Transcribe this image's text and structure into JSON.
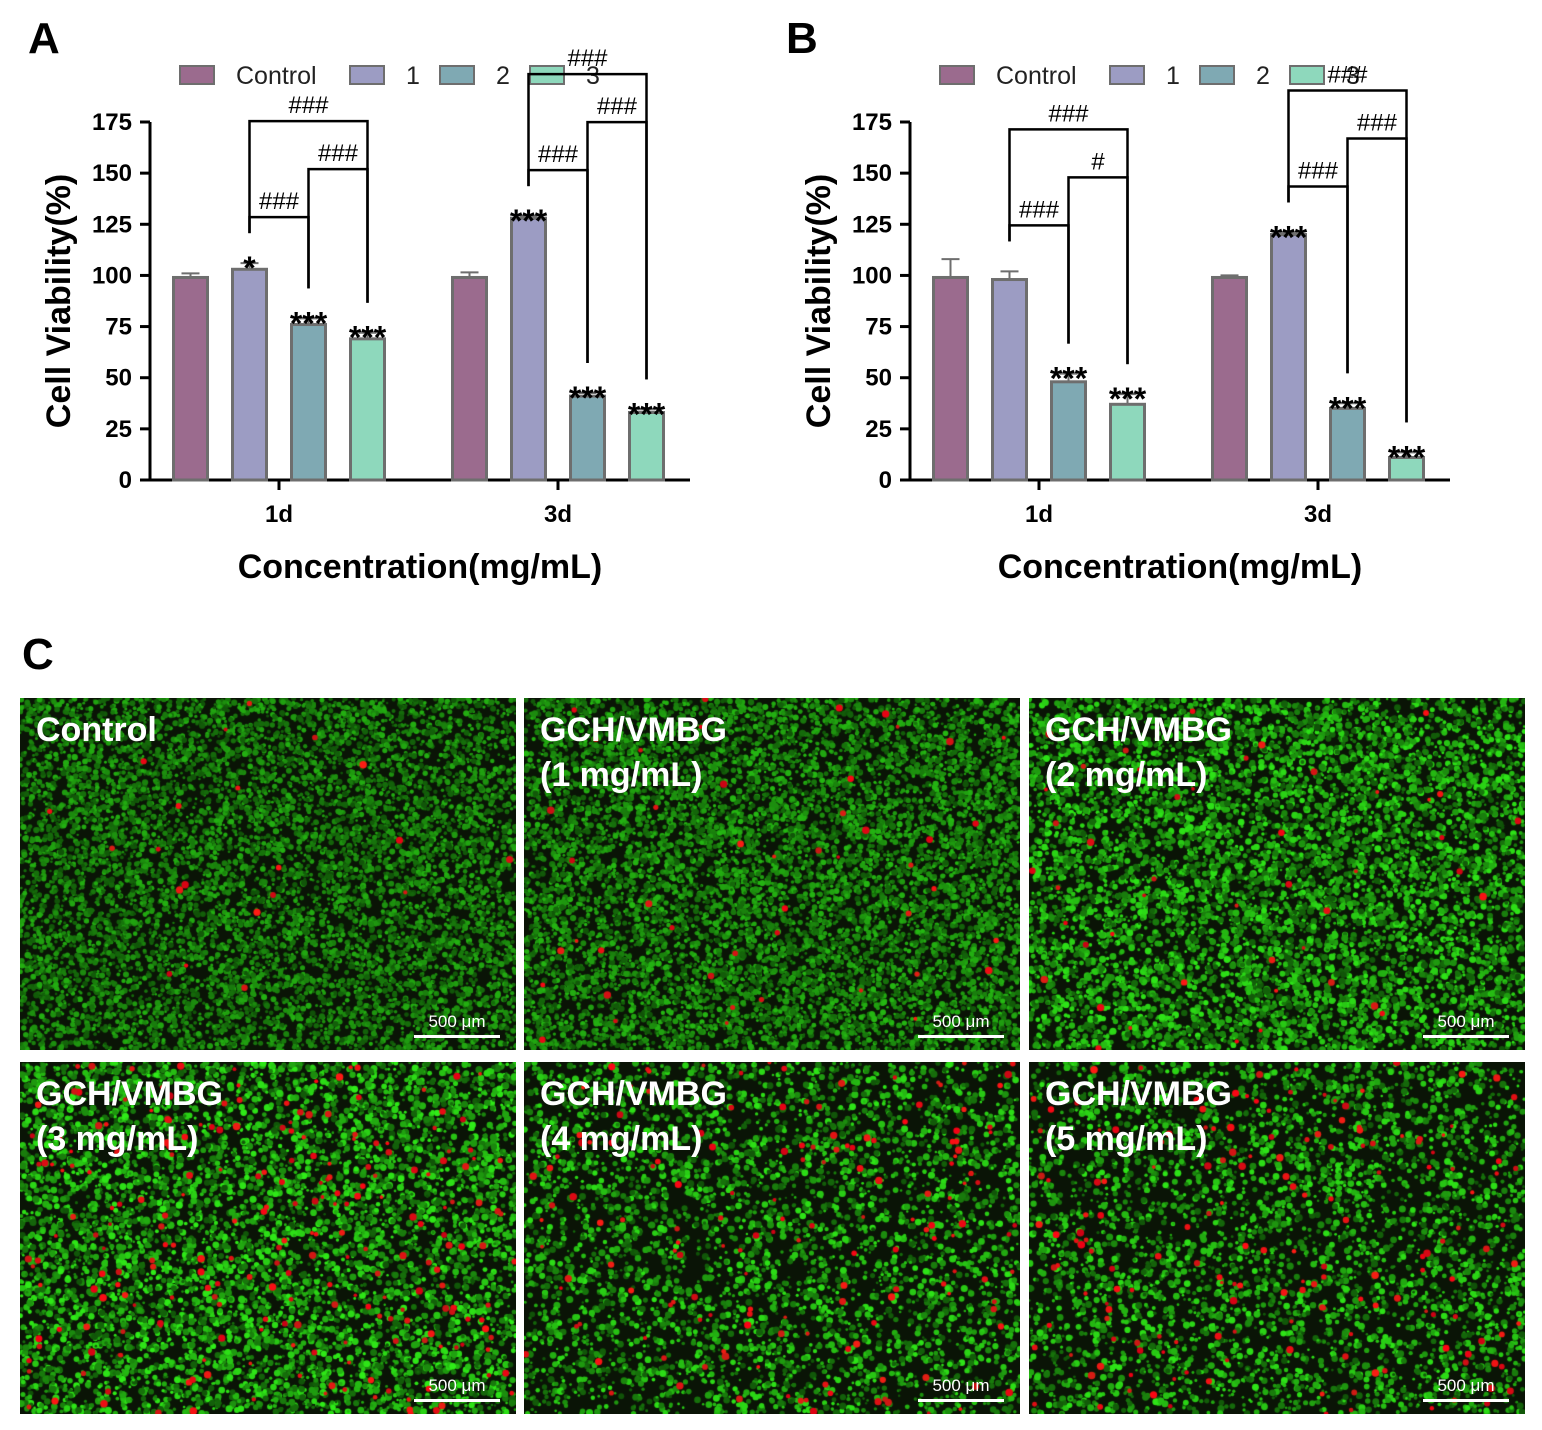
{
  "panel_letters": {
    "a": "A",
    "b": "B",
    "c": "C"
  },
  "colors": {
    "Control": "#9b6b8e",
    "1": "#9c9cc3",
    "2": "#7fa9b3",
    "3": "#8ed8bc",
    "bar_edge": "#6e6e6e"
  },
  "chart_data": [
    {
      "type": "bar",
      "panel": "A",
      "categories": [
        "1d",
        "3d"
      ],
      "series": [
        {
          "name": "Control",
          "values": [
            99,
            99
          ],
          "errors": [
            2,
            2.5
          ]
        },
        {
          "name": "1",
          "values": [
            103,
            128
          ],
          "errors": [
            3,
            1
          ]
        },
        {
          "name": "2",
          "values": [
            76,
            41
          ],
          "errors": [
            3,
            1.5
          ]
        },
        {
          "name": "3",
          "values": [
            69,
            33
          ],
          "errors": [
            3,
            1.5
          ]
        }
      ],
      "stars": [
        [
          "",
          "*",
          "***",
          "***"
        ],
        [
          "",
          "***",
          "***",
          "***"
        ]
      ],
      "brackets": [
        {
          "category": "1d",
          "from": "1",
          "to": "2",
          "label": "###"
        },
        {
          "category": "1d",
          "from": "1",
          "to": "3",
          "label": "###"
        },
        {
          "category": "1d",
          "from": "2",
          "to": "3",
          "label": "###"
        },
        {
          "category": "3d",
          "from": "1",
          "to": "2",
          "label": "###"
        },
        {
          "category": "3d",
          "from": "1",
          "to": "3",
          "label": "###"
        },
        {
          "category": "3d",
          "from": "2",
          "to": "3",
          "label": "###"
        }
      ],
      "xlabel": "Concentration(mg/mL)",
      "ylabel": "Cell Viability(%)",
      "ylim": [
        0,
        175
      ],
      "yticks": [
        0,
        25,
        50,
        75,
        100,
        125,
        150,
        175
      ],
      "legend": [
        "Control",
        "1",
        "2",
        "3"
      ],
      "legend_position": "top",
      "grid": false
    },
    {
      "type": "bar",
      "panel": "B",
      "categories": [
        "1d",
        "3d"
      ],
      "series": [
        {
          "name": "Control",
          "values": [
            99,
            99
          ],
          "errors": [
            9,
            1
          ]
        },
        {
          "name": "1",
          "values": [
            98,
            120
          ],
          "errors": [
            4,
            1
          ]
        },
        {
          "name": "2",
          "values": [
            48,
            35
          ],
          "errors": [
            4,
            2.5
          ]
        },
        {
          "name": "3",
          "values": [
            37,
            11
          ],
          "errors": [
            5,
            2.5
          ]
        }
      ],
      "stars": [
        [
          "",
          "",
          "***",
          "***"
        ],
        [
          "",
          "***",
          "***",
          "***"
        ]
      ],
      "brackets": [
        {
          "category": "1d",
          "from": "1",
          "to": "2",
          "label": "###"
        },
        {
          "category": "1d",
          "from": "1",
          "to": "3",
          "label": "###"
        },
        {
          "category": "1d",
          "from": "2",
          "to": "3",
          "label": "#"
        },
        {
          "category": "3d",
          "from": "1",
          "to": "2",
          "label": "###"
        },
        {
          "category": "3d",
          "from": "1",
          "to": "3",
          "label": "###"
        },
        {
          "category": "3d",
          "from": "2",
          "to": "3",
          "label": "###"
        }
      ],
      "xlabel": "Concentration(mg/mL)",
      "ylabel": "Cell Viability(%)",
      "ylim": [
        0,
        175
      ],
      "yticks": [
        0,
        25,
        50,
        75,
        100,
        125,
        150,
        175
      ],
      "legend": [
        "Control",
        "1",
        "2",
        "3"
      ],
      "legend_position": "top",
      "grid": false
    }
  ],
  "micrographs": [
    {
      "label": "Control",
      "scale": "500 μm",
      "green_density": 0.95,
      "red_density": 0.08,
      "brightness": 0.55
    },
    {
      "label": "GCH/VMBG\n(1 mg/mL)",
      "scale": "500 μm",
      "green_density": 1.0,
      "red_density": 0.18,
      "brightness": 0.6
    },
    {
      "label": "GCH/VMBG\n(2 mg/mL)",
      "scale": "500 μm",
      "green_density": 0.8,
      "red_density": 0.18,
      "brightness": 0.85
    },
    {
      "label": "GCH/VMBG\n(3 mg/mL)",
      "scale": "500 μm",
      "green_density": 0.7,
      "red_density": 0.9,
      "brightness": 0.9
    },
    {
      "label": "GCH/VMBG\n(4 mg/mL)",
      "scale": "500 μm",
      "green_density": 0.45,
      "red_density": 0.6,
      "brightness": 0.85
    },
    {
      "label": "GCH/VMBG\n(5 mg/mL)",
      "scale": "500 μm",
      "green_density": 0.45,
      "red_density": 0.65,
      "brightness": 0.85
    }
  ]
}
